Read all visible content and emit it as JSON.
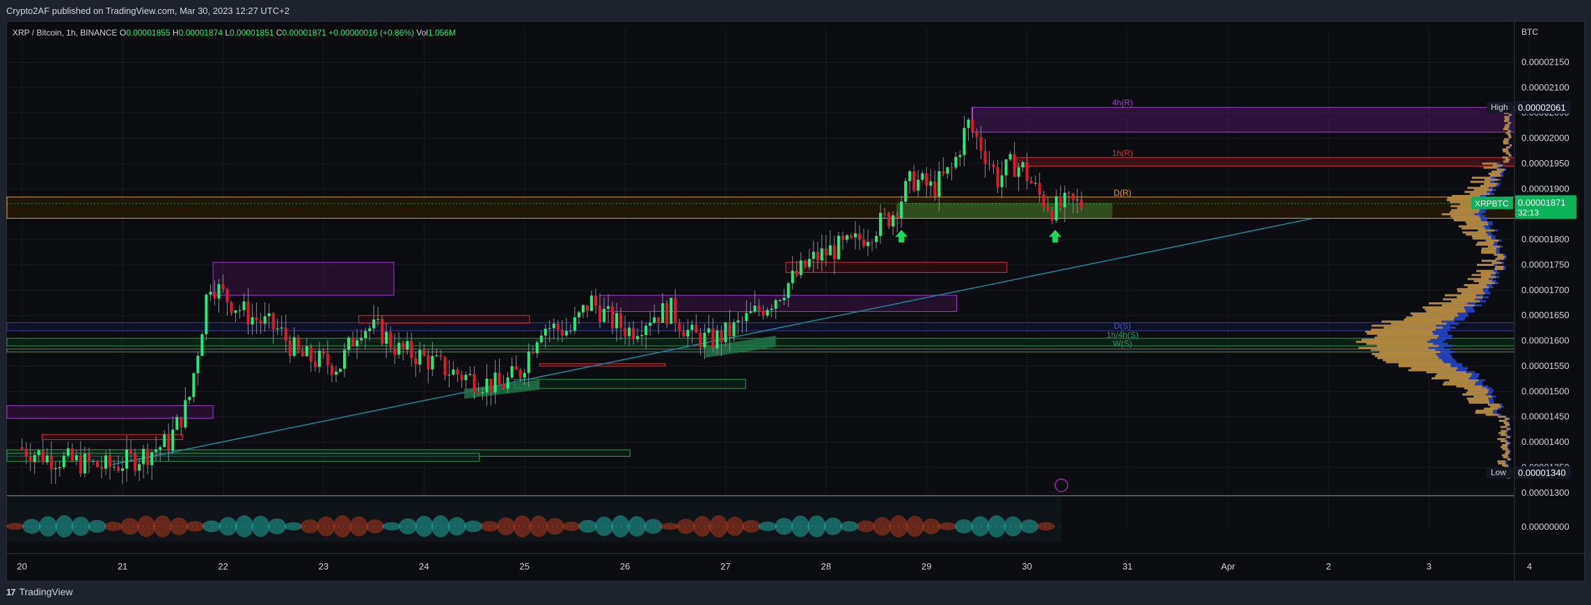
{
  "header": {
    "published": "Crypto2AF published on TradingView.com, Mar 30, 2023 12:27 UTC+2"
  },
  "footer": {
    "brand": "TradingView"
  },
  "colors": {
    "up": "#1df07a",
    "down": "#e8142b",
    "bg": "#0b0c10",
    "grid": "#161a22",
    "purple": "#a83cd6",
    "red_line": "#d3353c",
    "orange": "#f0a020",
    "green_zone": "#2e9e4e",
    "teal_trend": "#1e8aa0",
    "vp_blue": "#2348d6",
    "vp_gold": "#c99326"
  },
  "chart_data": {
    "type": "candlestick",
    "symbol_line": {
      "symbol": "XRP / Bitcoin, 1h, BINANCE",
      "o_label": "O",
      "o": "0.00001855",
      "h_label": "H",
      "h": "0.00001874",
      "l_label": "L",
      "l": "0.00001851",
      "c_label": "C",
      "c": "0.00001871",
      "change": "+0.00000016 (+0.86%)",
      "vol_label": "Vol",
      "vol": "1.056M"
    },
    "y_axis": {
      "unit": "BTC",
      "ticks": [
        "0.00002150",
        "0.00002100",
        "0.00002050",
        "0.00002000",
        "0.00001950",
        "0.00001900",
        "0.00001850",
        "0.00001800",
        "0.00001750",
        "0.00001700",
        "0.00001650",
        "0.00001600",
        "0.00001550",
        "0.00001500",
        "0.00001450",
        "0.00001400",
        "0.00001350",
        "0.00001300"
      ],
      "tick_values": [
        2.15e-05,
        2.1e-05,
        2.05e-05,
        2e-05,
        1.95e-05,
        1.9e-05,
        1.85e-05,
        1.8e-05,
        1.75e-05,
        1.7e-05,
        1.65e-05,
        1.6e-05,
        1.55e-05,
        1.5e-05,
        1.45e-05,
        1.4e-05,
        1.35e-05,
        1.3e-05
      ],
      "range": [
        1.297e-05,
        2.218e-05
      ]
    },
    "x_axis": {
      "ticks": [
        "20",
        "21",
        "22",
        "23",
        "24",
        "25",
        "26",
        "27",
        "28",
        "29",
        "30",
        "31",
        "Apr",
        "2",
        "3",
        "4"
      ],
      "range_days": [
        19.85,
        34.85
      ]
    },
    "high_label": {
      "tag": "High",
      "value": "0.00002061"
    },
    "low_label": {
      "tag": "Low",
      "value": "0.00001340"
    },
    "last_price": {
      "ticker": "XRPBTC",
      "value": "0.00001871",
      "countdown": "32:13"
    },
    "oscillator": {
      "value": "0.00000000"
    },
    "annotations": [
      "4h(R)",
      "1h(R)",
      "D(R)",
      "D(S)",
      "1h/4h(S)",
      "W(S)"
    ],
    "price_path": [
      [
        20.0,
        1.39e-05
      ],
      [
        20.3,
        1.37e-05
      ],
      [
        20.6,
        1.36e-05
      ],
      [
        20.9,
        1.35e-05
      ],
      [
        21.2,
        1.37e-05
      ],
      [
        21.5,
        1.4e-05
      ],
      [
        21.7,
        1.48e-05
      ],
      [
        21.85,
        1.65e-05
      ],
      [
        21.9,
        1.72e-05
      ],
      [
        22.1,
        1.68e-05
      ],
      [
        22.3,
        1.65e-05
      ],
      [
        22.6,
        1.62e-05
      ],
      [
        22.8,
        1.57e-05
      ],
      [
        23.0,
        1.56e-05
      ],
      [
        23.2,
        1.55e-05
      ],
      [
        23.4,
        1.63e-05
      ],
      [
        23.6,
        1.62e-05
      ],
      [
        23.8,
        1.58e-05
      ],
      [
        24.0,
        1.57e-05
      ],
      [
        24.3,
        1.54e-05
      ],
      [
        24.6,
        1.52e-05
      ],
      [
        24.8,
        1.51e-05
      ],
      [
        25.0,
        1.54e-05
      ],
      [
        25.2,
        1.63e-05
      ],
      [
        25.5,
        1.62e-05
      ],
      [
        25.7,
        1.68e-05
      ],
      [
        25.9,
        1.64e-05
      ],
      [
        26.1,
        1.62e-05
      ],
      [
        26.3,
        1.65e-05
      ],
      [
        26.5,
        1.66e-05
      ],
      [
        26.7,
        1.61e-05
      ],
      [
        26.9,
        1.6e-05
      ],
      [
        27.1,
        1.62e-05
      ],
      [
        27.3,
        1.65e-05
      ],
      [
        27.5,
        1.68e-05
      ],
      [
        27.7,
        1.72e-05
      ],
      [
        27.9,
        1.76e-05
      ],
      [
        28.1,
        1.78e-05
      ],
      [
        28.3,
        1.79e-05
      ],
      [
        28.5,
        1.82e-05
      ],
      [
        28.7,
        1.85e-05
      ],
      [
        28.9,
        1.92e-05
      ],
      [
        29.1,
        1.9e-05
      ],
      [
        29.3,
        1.94e-05
      ],
      [
        29.45,
        2.03e-05
      ],
      [
        29.6,
        1.98e-05
      ],
      [
        29.75,
        1.92e-05
      ],
      [
        29.9,
        1.95e-05
      ],
      [
        30.0,
        1.94e-05
      ],
      [
        30.15,
        1.89e-05
      ],
      [
        30.3,
        1.86e-05
      ],
      [
        30.45,
        1.87e-05
      ],
      [
        30.55,
        1.87e-05
      ]
    ],
    "title": "",
    "xlabel": "",
    "ylabel": ""
  }
}
